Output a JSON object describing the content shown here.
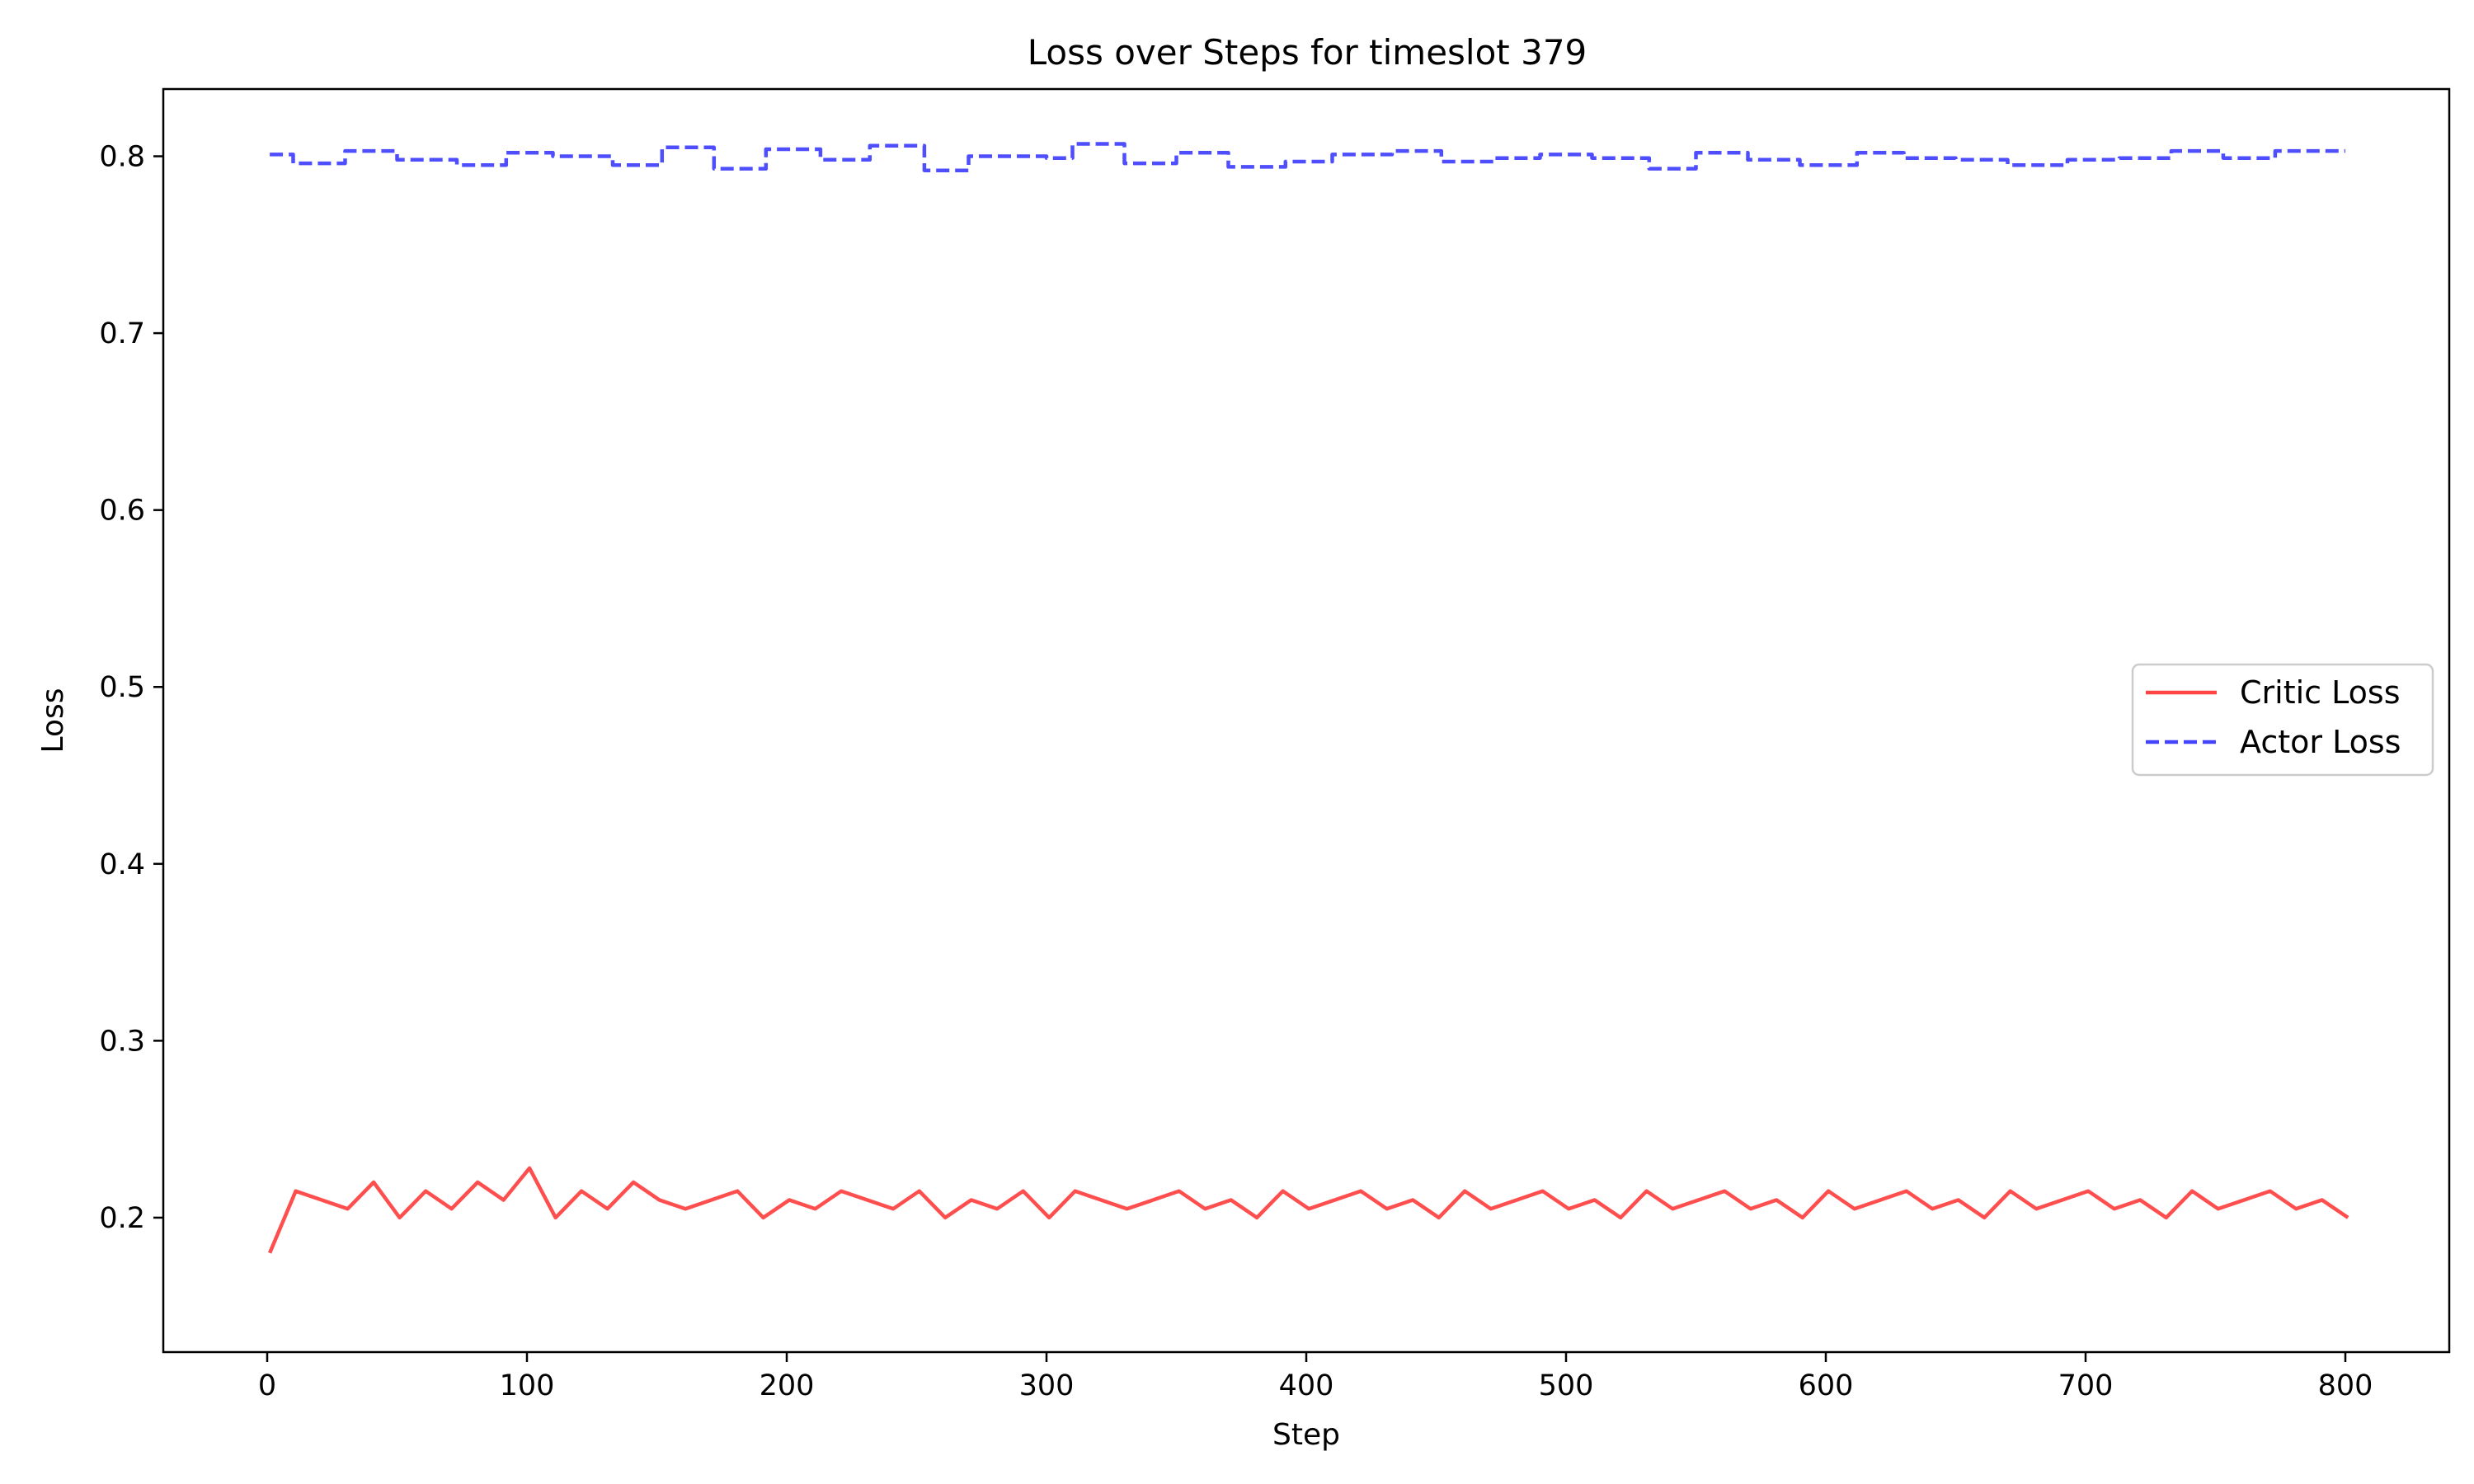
{
  "chart_data": {
    "type": "line",
    "title": "Loss over Steps for timeslot 379",
    "xlabel": "Step",
    "ylabel": "Loss",
    "xlim": [
      -40,
      840
    ],
    "ylim": [
      0.124,
      0.838
    ],
    "xticks": [
      0,
      100,
      200,
      300,
      400,
      500,
      600,
      700,
      800
    ],
    "xtick_labels": [
      "0",
      "100",
      "200",
      "300",
      "400",
      "500",
      "600",
      "700",
      "800"
    ],
    "yticks": [
      0.2,
      0.3,
      0.4,
      0.5,
      0.6,
      0.7,
      0.8
    ],
    "ytick_labels": [
      "0.2",
      "0.3",
      "0.4",
      "0.5",
      "0.6",
      "0.7",
      "0.8"
    ],
    "grid": false,
    "legend": "center-right",
    "series": [
      {
        "name": "Critic Loss",
        "style": "solid",
        "color": "#ff4444",
        "x_start": 1,
        "x_step": 10,
        "values": [
          0.18,
          0.215,
          0.21,
          0.205,
          0.22,
          0.2,
          0.215,
          0.205,
          0.22,
          0.21,
          0.228,
          0.2,
          0.215,
          0.205,
          0.22,
          0.21,
          0.205,
          0.21,
          0.215,
          0.2,
          0.21,
          0.205,
          0.215,
          0.21,
          0.205,
          0.215,
          0.2,
          0.21,
          0.205,
          0.215,
          0.2,
          0.215,
          0.21,
          0.205,
          0.21,
          0.215,
          0.205,
          0.21,
          0.2,
          0.215,
          0.205,
          0.21,
          0.215,
          0.205,
          0.21,
          0.2,
          0.215,
          0.205,
          0.21,
          0.215,
          0.205,
          0.21,
          0.2,
          0.215,
          0.205,
          0.21,
          0.215,
          0.205,
          0.21,
          0.2,
          0.215,
          0.205,
          0.21,
          0.215,
          0.205,
          0.21,
          0.2,
          0.215,
          0.205,
          0.21,
          0.215,
          0.205,
          0.21,
          0.2,
          0.215,
          0.205,
          0.21,
          0.215,
          0.205,
          0.21,
          0.2
        ]
      },
      {
        "name": "Actor Loss",
        "style": "dashed",
        "color": "#4444ff",
        "x": [
          1,
          10,
          30,
          50,
          73,
          92,
          110,
          133,
          152,
          172,
          192,
          213,
          232,
          253,
          270,
          300,
          310,
          330,
          350,
          370,
          392,
          410,
          433,
          452,
          472,
          490,
          510,
          532,
          550,
          570,
          590,
          612,
          630,
          650,
          670,
          693,
          713,
          733,
          753,
          773,
          800
        ],
        "values": [
          0.801,
          0.796,
          0.803,
          0.798,
          0.795,
          0.802,
          0.8,
          0.795,
          0.805,
          0.793,
          0.804,
          0.798,
          0.806,
          0.792,
          0.8,
          0.799,
          0.807,
          0.796,
          0.802,
          0.794,
          0.797,
          0.801,
          0.803,
          0.797,
          0.799,
          0.801,
          0.799,
          0.793,
          0.802,
          0.798,
          0.795,
          0.802,
          0.799,
          0.798,
          0.795,
          0.798,
          0.799,
          0.803,
          0.799,
          0.803,
          0.803
        ]
      }
    ]
  }
}
